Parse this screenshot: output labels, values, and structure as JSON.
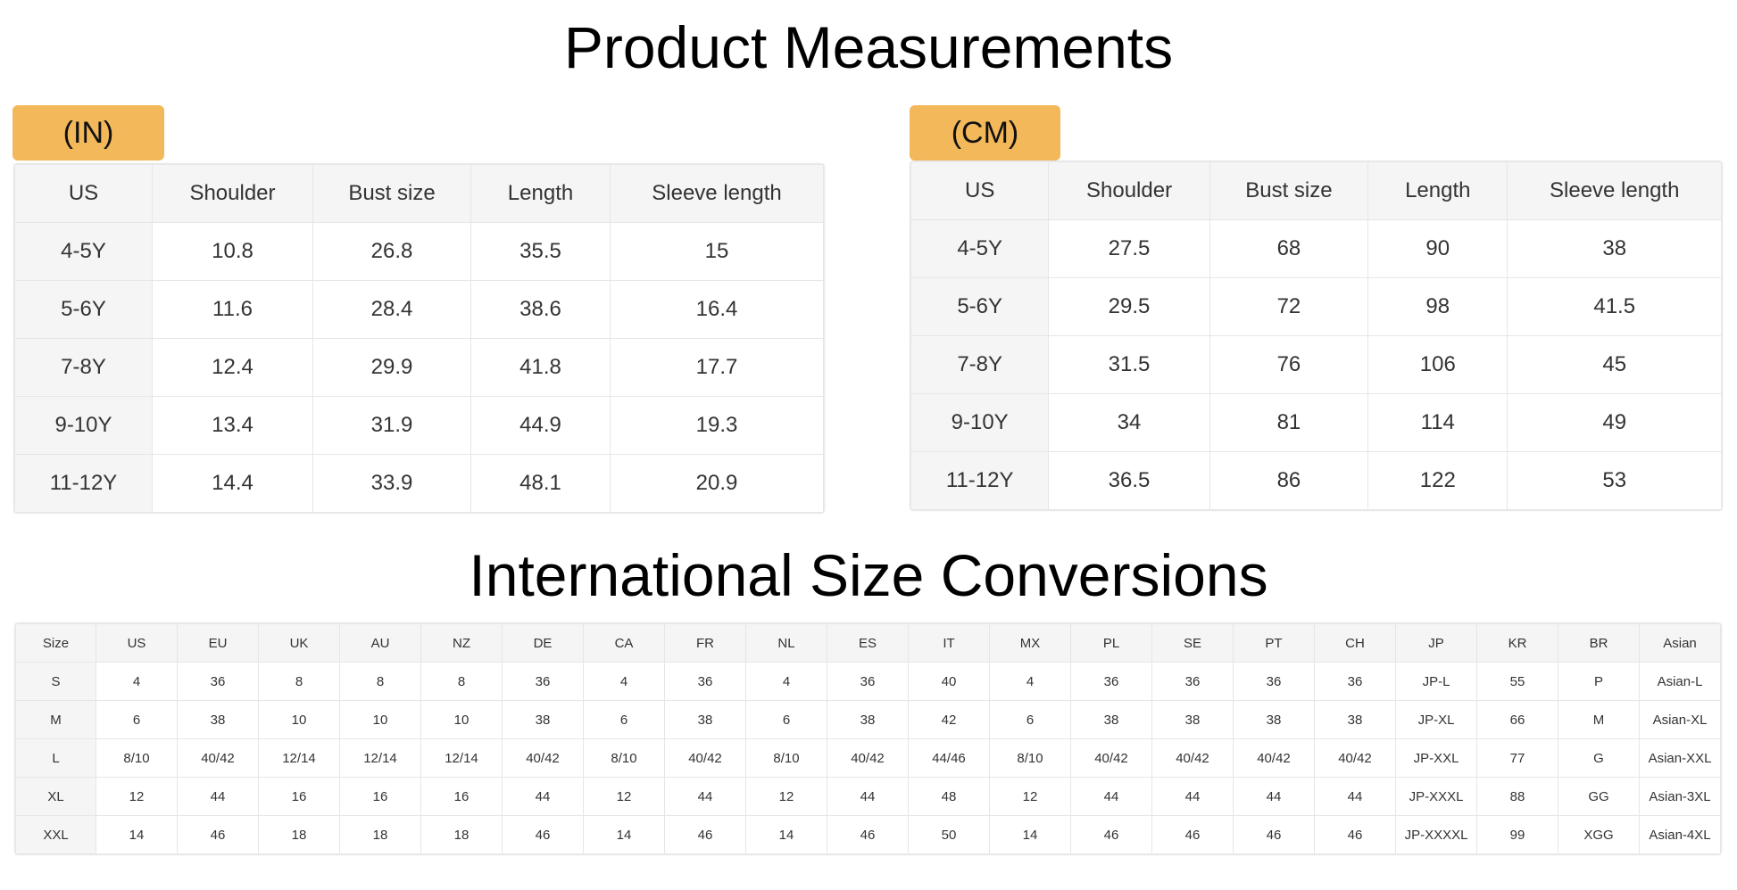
{
  "title": "Product Measurements",
  "inches": {
    "label": "(IN)",
    "headers": [
      "US",
      "Shoulder",
      "Bust size",
      "Length",
      "Sleeve length"
    ],
    "rows": [
      [
        "4-5Y",
        "10.8",
        "26.8",
        "35.5",
        "15"
      ],
      [
        "5-6Y",
        "11.6",
        "28.4",
        "38.6",
        "16.4"
      ],
      [
        "7-8Y",
        "12.4",
        "29.9",
        "41.8",
        "17.7"
      ],
      [
        "9-10Y",
        "13.4",
        "31.9",
        "44.9",
        "19.3"
      ],
      [
        "11-12Y",
        "14.4",
        "33.9",
        "48.1",
        "20.9"
      ]
    ]
  },
  "centimeters": {
    "label": "(CM)",
    "headers": [
      "US",
      "Shoulder",
      "Bust size",
      "Length",
      "Sleeve length"
    ],
    "rows": [
      [
        "4-5Y",
        "27.5",
        "68",
        "90",
        "38"
      ],
      [
        "5-6Y",
        "29.5",
        "72",
        "98",
        "41.5"
      ],
      [
        "7-8Y",
        "31.5",
        "76",
        "106",
        "45"
      ],
      [
        "9-10Y",
        "34",
        "81",
        "114",
        "49"
      ],
      [
        "11-12Y",
        "36.5",
        "86",
        "122",
        "53"
      ]
    ]
  },
  "conversions": {
    "title": "International Size Conversions",
    "headers": [
      "Size",
      "US",
      "EU",
      "UK",
      "AU",
      "NZ",
      "DE",
      "CA",
      "FR",
      "NL",
      "ES",
      "IT",
      "MX",
      "PL",
      "SE",
      "PT",
      "CH",
      "JP",
      "KR",
      "BR",
      "Asian"
    ],
    "rows": [
      [
        "S",
        "4",
        "36",
        "8",
        "8",
        "8",
        "36",
        "4",
        "36",
        "4",
        "36",
        "40",
        "4",
        "36",
        "36",
        "36",
        "36",
        "JP-L",
        "55",
        "P",
        "Asian-L"
      ],
      [
        "M",
        "6",
        "38",
        "10",
        "10",
        "10",
        "38",
        "6",
        "38",
        "6",
        "38",
        "42",
        "6",
        "38",
        "38",
        "38",
        "38",
        "JP-XL",
        "66",
        "M",
        "Asian-XL"
      ],
      [
        "L",
        "8/10",
        "40/42",
        "12/14",
        "12/14",
        "12/14",
        "40/42",
        "8/10",
        "40/42",
        "8/10",
        "40/42",
        "44/46",
        "8/10",
        "40/42",
        "40/42",
        "40/42",
        "40/42",
        "JP-XXL",
        "77",
        "G",
        "Asian-XXL"
      ],
      [
        "XL",
        "12",
        "44",
        "16",
        "16",
        "16",
        "44",
        "12",
        "44",
        "12",
        "44",
        "48",
        "12",
        "44",
        "44",
        "44",
        "44",
        "JP-XXXL",
        "88",
        "GG",
        "Asian-3XL"
      ],
      [
        "XXL",
        "14",
        "46",
        "18",
        "18",
        "18",
        "46",
        "14",
        "46",
        "14",
        "46",
        "50",
        "14",
        "46",
        "46",
        "46",
        "46",
        "JP-XXXXL",
        "99",
        "XGG",
        "Asian-4XL"
      ]
    ]
  },
  "colors": {
    "tab": "#f2b85a",
    "header_bg": "#f5f5f5",
    "border": "#e6e6e6"
  }
}
